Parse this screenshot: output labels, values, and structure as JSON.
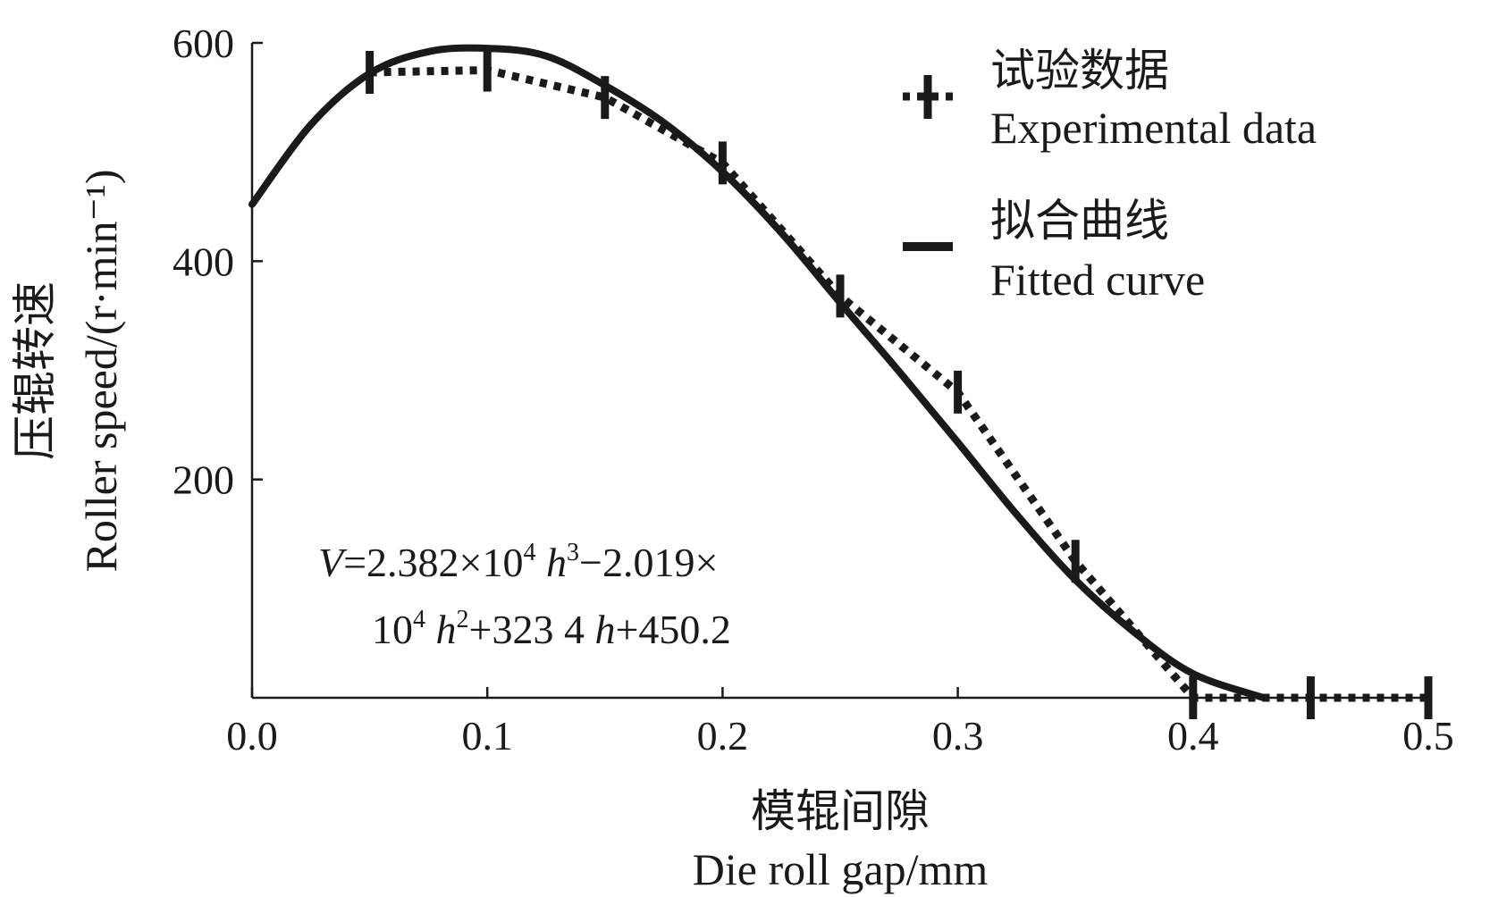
{
  "chart_data": {
    "type": "line",
    "xlabel_cn": "模辊间隙",
    "xlabel": "Die roll gap/mm",
    "ylabel_cn": "压辊转速",
    "ylabel": "Roller speed/(r·min⁻¹)",
    "xlim": [
      0,
      0.5
    ],
    "ylim": [
      0,
      600
    ],
    "x_ticks": [
      "0.0",
      "0.1",
      "0.2",
      "0.3",
      "0.4",
      "0.5"
    ],
    "y_ticks": [
      "200",
      "400",
      "600"
    ],
    "grid": false,
    "legend_position": "top-right",
    "series": [
      {
        "name_cn": "试验数据",
        "name": "Experimental data",
        "style": "dotted-with-vertical-bars",
        "x": [
          0.05,
          0.1,
          0.15,
          0.2,
          0.25,
          0.3,
          0.35,
          0.4,
          0.45,
          0.5
        ],
        "y": [
          573,
          575,
          550,
          490,
          368,
          280,
          125,
          0,
          0,
          0
        ]
      },
      {
        "name_cn": "拟合曲线",
        "name": "Fitted curve",
        "style": "solid",
        "x": [
          0.0,
          0.025,
          0.05,
          0.075,
          0.1,
          0.125,
          0.15,
          0.175,
          0.2,
          0.225,
          0.25,
          0.275,
          0.3,
          0.325,
          0.35,
          0.375,
          0.4,
          0.43
        ],
        "y": [
          452,
          525,
          572,
          592,
          595,
          588,
          561,
          527,
          482,
          426,
          362,
          299,
          234,
          168,
          108,
          60,
          22,
          0
        ]
      }
    ],
    "equation": {
      "line1": {
        "v": "V",
        "part1": "=2.382×10",
        "sup1": "4",
        "h1": " h",
        "sup2": "3",
        "part2": "−2.019×"
      },
      "line2": {
        "part1": "10",
        "sup1": "4",
        "h1": " h",
        "sup2": "2",
        "part2": "+323 4 ",
        "h2": "h",
        "part3": "+450.2"
      }
    },
    "colors": {
      "ink": "#1a1a1a"
    }
  }
}
